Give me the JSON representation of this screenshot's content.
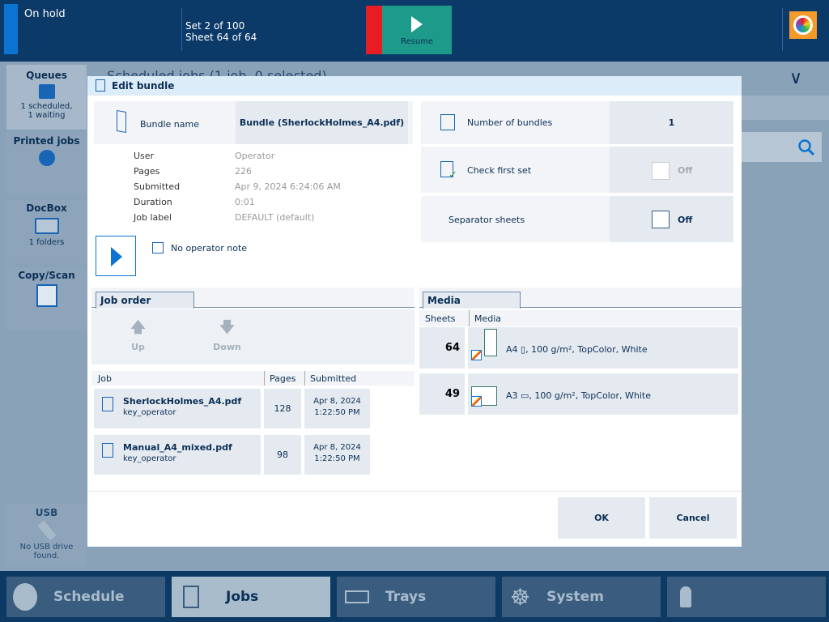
{
  "status": {
    "state": "On hold",
    "set": "Set 2 of 100",
    "sheet": "Sheet 64 of 64",
    "resume_label": "Resume"
  },
  "background": {
    "header_title": "Scheduled jobs (1 job, 0 selected)"
  },
  "sidebar": {
    "items": [
      {
        "label": "Queues",
        "sub1": "1 scheduled,",
        "sub2": "1 waiting"
      },
      {
        "label": "Printed jobs"
      },
      {
        "label": "DocBox",
        "sub1": "1 folders"
      },
      {
        "label": "Copy/Scan"
      }
    ],
    "usb": {
      "label": "USB",
      "sub": "No USB drive found."
    }
  },
  "dialog": {
    "title": "Edit bundle",
    "bundle_name_label": "Bundle name",
    "bundle_name": "Bundle (SherlockHolmes_A4.pdf)",
    "info": [
      {
        "label": "User",
        "value": "Operator"
      },
      {
        "label": "Pages",
        "value": "226"
      },
      {
        "label": "Submitted",
        "value": "Apr 9, 2024 6:24:06 AM"
      },
      {
        "label": "Duration",
        "value": "0:01"
      },
      {
        "label": "Job label",
        "value": "DEFAULT (default)"
      }
    ],
    "operator_note": "No operator note",
    "number_of_bundles_label": "Number of bundles",
    "number_of_bundles": "1",
    "check_first_set_label": "Check first set",
    "check_first_set": "Off",
    "separator_sheets_label": "Separator sheets",
    "separator_sheets": "Off",
    "job_order": {
      "tab": "Job order",
      "up": "Up",
      "down": "Down",
      "headers": [
        "Job",
        "Pages",
        "Submitted"
      ],
      "rows": [
        {
          "name": "SherlockHolmes_A4.pdf",
          "user": "key_operator",
          "pages": "128",
          "date": "Apr 8, 2024",
          "time": "1:22:50 PM"
        },
        {
          "name": "Manual_A4_mixed.pdf",
          "user": "key_operator",
          "pages": "98",
          "date": "Apr 8, 2024",
          "time": "1:22:50 PM"
        }
      ]
    },
    "media": {
      "tab": "Media",
      "headers": [
        "Sheets",
        "Media"
      ],
      "rows": [
        {
          "sheets": "64",
          "media": "A4 ▯, 100 g/m², TopColor, White"
        },
        {
          "sheets": "49",
          "media": "A3 ▭, 100 g/m², TopColor, White"
        }
      ]
    },
    "ok": "OK",
    "cancel": "Cancel"
  },
  "nav": [
    {
      "label": "Schedule"
    },
    {
      "label": "Jobs",
      "active": true
    },
    {
      "label": "Trays"
    },
    {
      "label": "System"
    }
  ],
  "colors": {
    "accent": "#0b74d1",
    "resume": "#1e9a8a",
    "stop": "#e81c24",
    "topbar": "#0b3a69"
  }
}
